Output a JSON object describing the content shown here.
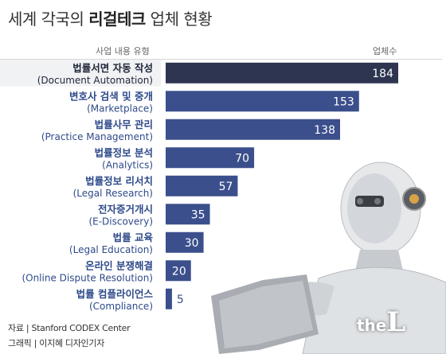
{
  "title": {
    "prefix": "세계 각국의 ",
    "bold": "리걸테크",
    "suffix": " 업체 현황"
  },
  "header": {
    "left": "사업 내용 유형",
    "right": "업체수"
  },
  "chart_data": {
    "type": "bar",
    "orientation": "horizontal",
    "title": "세계 각국의 리걸테크 업체 현황",
    "xlabel": "업체수",
    "ylabel": "사업 내용 유형",
    "xlim": [
      0,
      184
    ],
    "categories": [
      {
        "ko": "법률서면 자동 작성",
        "en": "(Document Automation)"
      },
      {
        "ko": "변호사 검색 및 중개",
        "en": "(Marketplace)"
      },
      {
        "ko": "법률사무 관리",
        "en": "(Practice Management)"
      },
      {
        "ko": "법률정보 분석",
        "en": "(Analytics)"
      },
      {
        "ko": "법률정보 리서치",
        "en": "(Legal Research)"
      },
      {
        "ko": "전자증거개시",
        "en": "(E-Discovery)"
      },
      {
        "ko": "법률 교육",
        "en": "(Legal Education)"
      },
      {
        "ko": "온라인 분쟁해결",
        "en": "(Online Dispute Resolution)"
      },
      {
        "ko": "법률 컴플라이언스",
        "en": "(Compliance)"
      }
    ],
    "values": [
      184,
      153,
      138,
      70,
      57,
      35,
      30,
      20,
      5
    ],
    "colors": {
      "top_bar": "#2d3550",
      "bar": "#3b4f8c",
      "top_label": "#1f2538",
      "label": "#2e4a8a",
      "value_inside": "#ffffff",
      "value_outside": "#3b4f8c"
    }
  },
  "footer": {
    "source": "자료 | Stanford CODEX Center",
    "credit": "그래픽 | 이지혜 디자인기자"
  },
  "watermark": {
    "the": "the",
    "L": "L"
  },
  "illustration": {
    "name": "robot-with-laptop"
  }
}
